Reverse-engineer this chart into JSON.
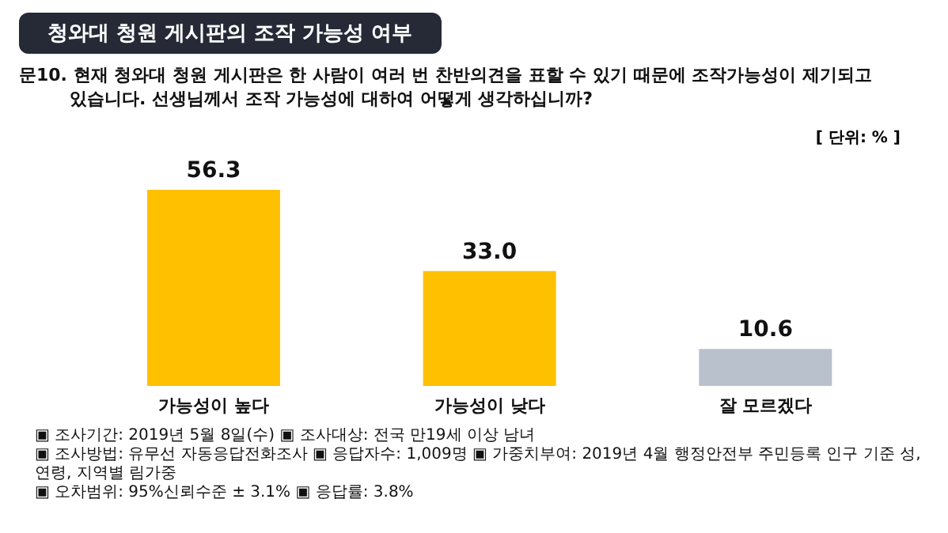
{
  "chart_data": {
    "type": "bar",
    "title": "청와대 청원 게시판의 조작 가능성 여부",
    "subtitle": "문10. 현재 청와대 청원 게시판은 한 사람이 여러 번 찬반의견을 표할 수 있기 때문에 조작가능성이 제기되고 있습니다. 선생님께서 조작 가능성에 대하여 어떻게 생각하십니까?",
    "categories": [
      "가능성이 높다",
      "가능성이 낮다",
      "잘 모르겠다"
    ],
    "values": [
      56.3,
      33.0,
      10.6
    ],
    "colors": [
      "#ffc000",
      "#ffc000",
      "#b9c1cc"
    ],
    "value_labels": [
      "56.3",
      "33.0",
      "10.6"
    ],
    "grid": false,
    "legend": false,
    "annotations": [
      "[ 단위: % ]",
      "▣ 조사기간: 2019년 5월 8일(수) ▣ 조사대상: 전국 만19세 이상 남녀",
      "▣ 조사방법: 유무선 자동응답전화조사 ▣ 응답자수: 1,009명 ▣ 가중치부여: 2019년 4월 행정안전부 주민등록 인구 기준 성,연령, 지역별 림가중",
      "▣ 오차범위: 95%신뢰수준 ± 3.1% ▣ 응답률: 3.8%"
    ]
  }
}
